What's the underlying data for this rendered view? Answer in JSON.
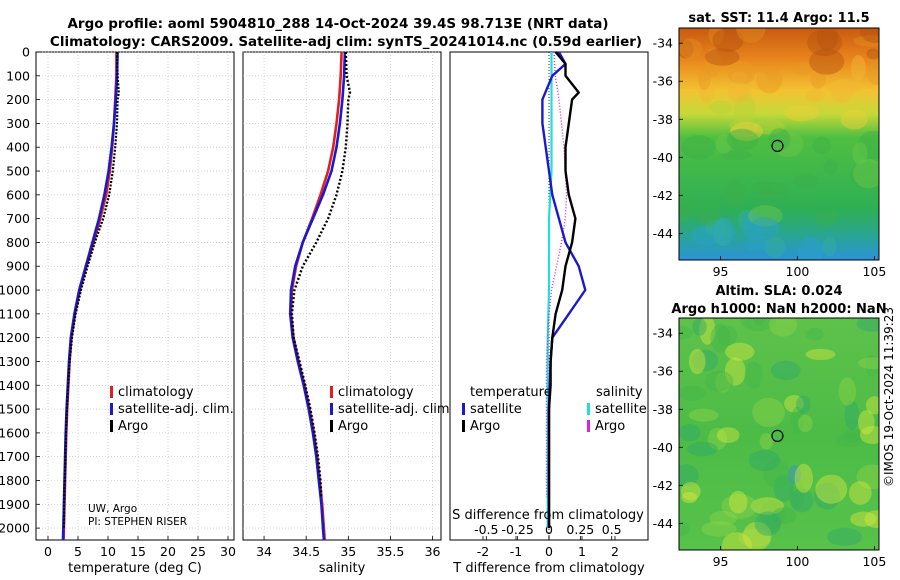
{
  "figure": {
    "title_line1": "Argo profile: aoml 5904810_288 14-Oct-2024 39.4S 98.713E (NRT data)",
    "title_line2": "Climatology: CARS2009. Satellite-adj clim: synTS_20241014.nc (0.59d earlier)",
    "credit_line1": "UW, Argo",
    "credit_line2": "PI: STEPHEN RISER",
    "timestamp": "©IMOS 19-Oct-2024 11:39:23"
  },
  "colors": {
    "climatology": "#e02020",
    "satellite": "#1a1acc",
    "argo": "#000000",
    "sal_satellite": "#22dddd",
    "sal_argo": "#dd22dd"
  },
  "legend": {
    "climatology": "climatology",
    "satellite": "satellite-adj. clim.",
    "argo": "Argo",
    "temperature_heading": "temperature",
    "salinity_heading": "salinity",
    "sat_short": "satellite",
    "argo_short": "Argo"
  },
  "chart_data": [
    {
      "type": "line",
      "id": "temperature",
      "xlabel": "temperature (deg C)",
      "ylabel": "",
      "xlim": [
        -2,
        31
      ],
      "ylim": [
        0,
        2050
      ],
      "xticks": [
        "0",
        "5",
        "10",
        "15",
        "20",
        "25",
        "30"
      ],
      "yticks": [
        "0",
        "100",
        "200",
        "300",
        "400",
        "500",
        "600",
        "700",
        "800",
        "900",
        "1000",
        "1100",
        "1200",
        "1300",
        "1400",
        "1500",
        "1600",
        "1700",
        "1800",
        "1900",
        "2000"
      ],
      "grid": true,
      "series": [
        {
          "name": "climatology",
          "depth": [
            0,
            100,
            200,
            300,
            400,
            500,
            600,
            700,
            800,
            900,
            1000,
            1100,
            1200,
            1300,
            1400,
            1500,
            1600,
            1700,
            1800,
            1900,
            2000,
            2050
          ],
          "values": [
            11.4,
            11.4,
            11.2,
            11.0,
            10.7,
            10.3,
            9.7,
            8.7,
            7.6,
            6.4,
            5.3,
            4.5,
            3.9,
            3.6,
            3.4,
            3.2,
            3.05,
            2.95,
            2.85,
            2.75,
            2.65,
            2.6
          ]
        },
        {
          "name": "satellite-adj. clim.",
          "depth": [
            0,
            100,
            200,
            300,
            400,
            500,
            600,
            700,
            800,
            900,
            1000,
            1100,
            1200,
            1300,
            1400,
            1500,
            1600,
            1700,
            1800,
            1900,
            2000,
            2050
          ],
          "values": [
            11.6,
            11.5,
            11.3,
            11.0,
            10.6,
            10.1,
            9.4,
            8.5,
            7.4,
            6.3,
            5.2,
            4.4,
            3.8,
            3.5,
            3.3,
            3.1,
            2.95,
            2.85,
            2.75,
            2.65,
            2.55,
            2.5
          ]
        },
        {
          "name": "Argo",
          "depth": [
            0,
            100,
            170,
            200,
            300,
            400,
            500,
            600,
            700,
            800,
            900,
            1000,
            1100,
            1200,
            1300,
            1400,
            1500,
            1600,
            1700,
            1800,
            1900,
            2000
          ],
          "values": [
            11.5,
            11.6,
            11.8,
            11.6,
            11.5,
            11.2,
            10.8,
            10.2,
            9.2,
            7.8,
            6.6,
            5.5,
            4.6,
            4.0,
            3.6,
            3.35,
            3.15,
            3.0,
            2.9,
            2.8,
            2.7,
            2.65
          ]
        }
      ]
    },
    {
      "type": "line",
      "id": "salinity",
      "xlabel": "salinity",
      "ylabel": "",
      "xlim": [
        33.75,
        36.1
      ],
      "ylim": [
        0,
        2050
      ],
      "xticks": [
        "34",
        "34.5",
        "35",
        "35.5",
        "36"
      ],
      "grid": true,
      "series": [
        {
          "name": "climatology",
          "depth": [
            0,
            100,
            200,
            300,
            400,
            500,
            600,
            700,
            800,
            900,
            1000,
            1100,
            1200,
            1300,
            1400,
            1500,
            1600,
            1700,
            1800,
            1900,
            2000,
            2050
          ],
          "values": [
            34.92,
            34.91,
            34.89,
            34.86,
            34.82,
            34.76,
            34.67,
            34.57,
            34.46,
            34.38,
            34.33,
            34.32,
            34.35,
            34.41,
            34.48,
            34.54,
            34.59,
            34.63,
            34.66,
            34.69,
            34.71,
            34.72
          ]
        },
        {
          "name": "satellite-adj. clim.",
          "depth": [
            0,
            100,
            200,
            300,
            400,
            500,
            600,
            700,
            800,
            900,
            1000,
            1100,
            1200,
            1300,
            1400,
            1500,
            1600,
            1700,
            1800,
            1900,
            2000,
            2050
          ],
          "values": [
            34.96,
            34.95,
            34.93,
            34.9,
            34.86,
            34.8,
            34.7,
            34.58,
            34.46,
            34.37,
            34.32,
            34.31,
            34.34,
            34.4,
            34.47,
            34.53,
            34.58,
            34.62,
            34.65,
            34.68,
            34.7,
            34.71
          ]
        },
        {
          "name": "Argo",
          "depth": [
            0,
            100,
            170,
            200,
            300,
            400,
            500,
            600,
            700,
            800,
            900,
            1000,
            1100,
            1200,
            1300,
            1400,
            1500,
            1600,
            1700,
            1800,
            1870
          ],
          "values": [
            34.97,
            34.98,
            35.02,
            35.0,
            34.99,
            34.97,
            34.93,
            34.86,
            34.76,
            34.62,
            34.46,
            34.36,
            34.33,
            34.35,
            34.42,
            34.49,
            34.55,
            34.6,
            34.64,
            34.67,
            34.68
          ]
        }
      ]
    },
    {
      "type": "line",
      "id": "difference",
      "xlabel": "T difference from climatology",
      "x2label": "S difference from climatology",
      "ylabel": "",
      "xlim": [
        -3,
        3
      ],
      "ylim": [
        0,
        2050
      ],
      "xticks": [
        "-2",
        "-1",
        "0",
        "1",
        "2"
      ],
      "x2ticks": [
        "-0.5",
        "-0.25",
        "0",
        "0.25",
        "0.5"
      ],
      "grid": false,
      "series": [
        {
          "name": "temperature satellite",
          "depth": [
            0,
            50,
            100,
            200,
            300,
            400,
            500,
            600,
            700,
            800,
            900,
            1000,
            1100,
            1200,
            1300,
            1400,
            1500,
            1600,
            1700,
            1800,
            1900,
            2000
          ],
          "values": [
            0.3,
            0.5,
            0.1,
            -0.2,
            -0.2,
            -0.1,
            0.0,
            0.1,
            0.3,
            0.5,
            0.9,
            1.1,
            0.6,
            0.1,
            0.05,
            0.02,
            0.0,
            0.0,
            0.0,
            0.0,
            0.0,
            0.0
          ]
        },
        {
          "name": "temperature Argo",
          "depth": [
            0,
            50,
            100,
            170,
            200,
            300,
            400,
            500,
            600,
            700,
            800,
            900,
            1000,
            1100,
            1200,
            1300,
            1400,
            1500,
            1600,
            1700,
            1800,
            1900,
            2000
          ],
          "values": [
            0.2,
            0.5,
            0.5,
            0.9,
            0.7,
            0.6,
            0.5,
            0.5,
            0.6,
            0.8,
            0.7,
            0.5,
            0.4,
            0.2,
            0.1,
            0.05,
            0.05,
            0.0,
            0.0,
            0.0,
            0.0,
            0.0,
            0.0
          ]
        },
        {
          "name": "salinity satellite",
          "depth": [
            0,
            100,
            200,
            300,
            400,
            500,
            600,
            700,
            800,
            900,
            1000,
            1200,
            1400,
            1600,
            1800,
            2000
          ],
          "values": [
            0.02,
            0.02,
            0.02,
            0.02,
            0.02,
            0.02,
            0.01,
            0.0,
            0.0,
            0.0,
            0.0,
            -0.01,
            -0.01,
            -0.01,
            -0.01,
            -0.01
          ]
        },
        {
          "name": "salinity Argo",
          "depth": [
            0,
            100,
            200,
            300,
            400,
            500,
            600,
            700,
            800,
            900,
            1000,
            1100,
            1200,
            1300,
            1400,
            1500,
            1600,
            1700,
            1800,
            1870
          ],
          "values": [
            0.04,
            0.05,
            0.08,
            0.1,
            0.12,
            0.13,
            0.14,
            0.13,
            0.1,
            0.06,
            0.02,
            0.0,
            -0.01,
            -0.02,
            -0.02,
            -0.02,
            -0.02,
            -0.02,
            -0.02,
            -0.02
          ]
        }
      ]
    },
    {
      "type": "heatmap",
      "id": "sst_map",
      "title": "sat. SST: 11.4 Argo: 11.5",
      "xlim": [
        92.3,
        105.3
      ],
      "ylim": [
        -45.4,
        -33.2
      ],
      "xticks": [
        "95",
        "100",
        "105"
      ],
      "yticks": [
        "-34",
        "-36",
        "-38",
        "-40",
        "-42",
        "-44"
      ],
      "marker": {
        "lon": 98.7,
        "lat": -39.4
      }
    },
    {
      "type": "heatmap",
      "id": "sla_map",
      "title_line1": "Altim. SLA: 0.024",
      "title_line2": "Argo h1000: NaN h2000: NaN",
      "xlim": [
        92.3,
        105.3
      ],
      "ylim": [
        -45.4,
        -33.2
      ],
      "xticks": [
        "95",
        "100",
        "105"
      ],
      "yticks": [
        "-34",
        "-36",
        "-38",
        "-40",
        "-42",
        "-44"
      ],
      "marker": {
        "lon": 98.7,
        "lat": -39.4
      }
    }
  ]
}
